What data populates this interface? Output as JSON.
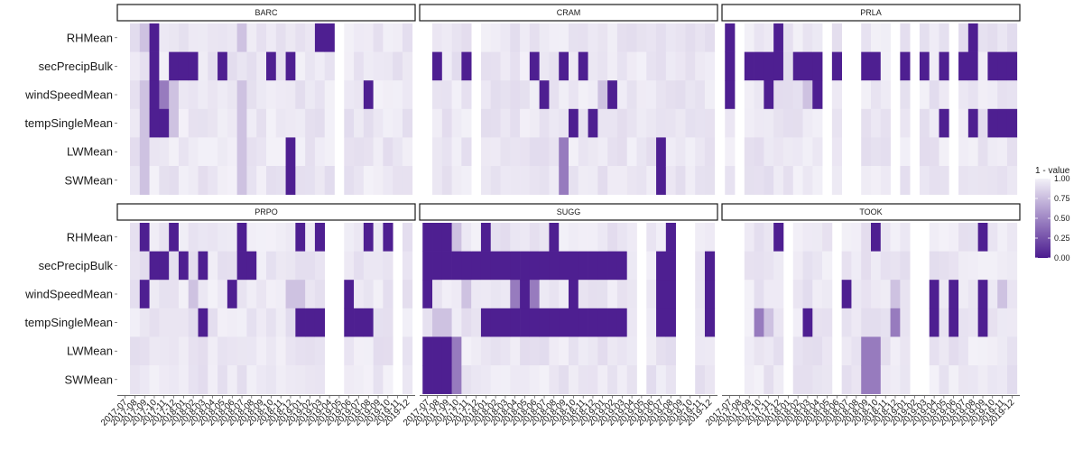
{
  "chart_data": {
    "type": "heatmap",
    "title": "",
    "xlabel": "",
    "ylabel": "",
    "variables": [
      "RHMean",
      "secPrecipBulk",
      "windSpeedMean",
      "tempSingleMean",
      "LWMean",
      "SWMean"
    ],
    "months": [
      "2017-07",
      "2017-08",
      "2017-09",
      "2017-10",
      "2017-11",
      "2017-12",
      "2018-01",
      "2018-02",
      "2018-03",
      "2018-04",
      "2018-05",
      "2018-06",
      "2018-07",
      "2018-08",
      "2018-09",
      "2018-10",
      "2018-11",
      "2018-12",
      "2019-01",
      "2019-02",
      "2019-03",
      "2019-04",
      "2019-05",
      "2019-06",
      "2019-07",
      "2019-08",
      "2019-09",
      "2019-10",
      "2019-11",
      "2019-12"
    ],
    "legend": {
      "title": "1 - value",
      "ticks": [
        "1.00",
        "0.75",
        "0.50",
        "0.25",
        "0.00"
      ],
      "low_color": "#4b1b8f",
      "high_color": "#f3f1f8",
      "placement": "right"
    },
    "panels": [
      {
        "site": "BARC",
        "missing_months": [
          "2017-07",
          "2019-05"
        ],
        "dark": {
          "RHMean": [
            "2017-10",
            "2019-03",
            "2019-04"
          ],
          "secPrecipBulk": [
            "2017-10",
            "2017-12",
            "2018-01",
            "2018-02",
            "2018-05",
            "2018-10",
            "2018-12"
          ],
          "windSpeedMean": [
            "2017-10",
            "2019-08"
          ],
          "tempSingleMean": [
            "2017-10",
            "2017-11"
          ],
          "LWMean": [
            "2018-12"
          ],
          "SWMean": [
            "2018-12"
          ]
        },
        "medium": {
          "windSpeedMean": [
            "2017-11"
          ]
        },
        "light": {
          "RHMean": [
            "2017-09",
            "2018-07"
          ],
          "windSpeedMean": [
            "2017-09",
            "2017-12",
            "2018-07"
          ],
          "tempSingleMean": [
            "2017-09",
            "2017-12",
            "2018-07"
          ],
          "LWMean": [
            "2017-09",
            "2018-07"
          ],
          "SWMean": [
            "2017-09",
            "2018-07"
          ]
        }
      },
      {
        "site": "CRAM",
        "missing_months": [
          "2017-07",
          "2017-12"
        ],
        "dark": {
          "secPrecipBulk": [
            "2017-08",
            "2017-11",
            "2018-06",
            "2018-09",
            "2018-11"
          ],
          "windSpeedMean": [
            "2018-07",
            "2019-02"
          ],
          "tempSingleMean": [
            "2018-10",
            "2018-12"
          ],
          "LWMean": [
            "2019-07"
          ],
          "SWMean": [
            "2019-07"
          ]
        },
        "medium": {
          "LWMean": [
            "2018-09"
          ],
          "SWMean": [
            "2018-09"
          ]
        },
        "light": {
          "windSpeedMean": [
            "2019-01"
          ]
        }
      },
      {
        "site": "PRLA",
        "missing_months": [
          "2017-08",
          "2018-05",
          "2018-07",
          "2018-08",
          "2018-12",
          "2019-02",
          "2019-06"
        ],
        "dark": {
          "RHMean": [
            "2017-07",
            "2017-12",
            "2019-08"
          ],
          "secPrecipBulk": [
            "2017-07",
            "2017-08",
            "2017-09",
            "2017-10",
            "2017-11",
            "2017-12",
            "2018-02",
            "2018-03",
            "2018-04",
            "2018-06",
            "2018-09",
            "2018-10",
            "2019-01",
            "2019-03",
            "2019-05",
            "2019-07",
            "2019-08",
            "2019-10",
            "2019-11",
            "2019-12"
          ],
          "windSpeedMean": [
            "2017-07",
            "2017-11",
            "2018-04"
          ],
          "tempSingleMean": [
            "2019-05",
            "2019-08",
            "2019-10",
            "2019-11",
            "2019-12"
          ]
        },
        "medium": {
          "LWMean": [
            "2017-08"
          ],
          "SWMean": [
            "2017-08"
          ]
        },
        "light": {
          "windSpeedMean": [
            "2018-03"
          ]
        }
      },
      {
        "site": "PRPO",
        "missing_months": [
          "2017-07",
          "2019-04",
          "2019-05",
          "2019-11"
        ],
        "dark": {
          "RHMean": [
            "2017-09",
            "2017-12",
            "2018-07",
            "2019-01",
            "2019-03",
            "2019-08",
            "2019-10"
          ],
          "secPrecipBulk": [
            "2017-10",
            "2017-11",
            "2018-01",
            "2018-03",
            "2018-07",
            "2018-08"
          ],
          "windSpeedMean": [
            "2017-09",
            "2018-06",
            "2019-06"
          ],
          "tempSingleMean": [
            "2018-03",
            "2019-01",
            "2019-02",
            "2019-03",
            "2019-06",
            "2019-07",
            "2019-08"
          ]
        },
        "medium": {},
        "light": {
          "windSpeedMean": [
            "2018-02",
            "2018-12",
            "2019-01"
          ]
        }
      },
      {
        "site": "SUGG",
        "missing_months": [
          "2019-05",
          "2019-09",
          "2019-10"
        ],
        "dark": {
          "RHMean": [
            "2017-07",
            "2017-08",
            "2017-09",
            "2018-01",
            "2018-08",
            "2019-08"
          ],
          "secPrecipBulk": [
            "2017-07",
            "2017-08",
            "2017-09",
            "2017-10",
            "2017-11",
            "2017-12",
            "2018-01",
            "2018-02",
            "2018-03",
            "2018-04",
            "2018-05",
            "2018-06",
            "2018-07",
            "2018-08",
            "2018-09",
            "2018-10",
            "2018-11",
            "2018-12",
            "2019-01",
            "2019-02",
            "2019-03",
            "2019-07",
            "2019-08",
            "2019-12"
          ],
          "windSpeedMean": [
            "2017-07",
            "2018-05",
            "2018-10",
            "2019-07",
            "2019-08",
            "2019-12"
          ],
          "tempSingleMean": [
            "2018-01",
            "2018-02",
            "2018-03",
            "2018-04",
            "2018-05",
            "2018-06",
            "2018-07",
            "2018-08",
            "2018-09",
            "2018-10",
            "2018-11",
            "2018-12",
            "2019-01",
            "2019-02",
            "2019-03",
            "2019-07",
            "2019-08",
            "2019-12"
          ],
          "LWMean": [
            "2017-07",
            "2017-08",
            "2017-09"
          ],
          "SWMean": [
            "2017-07",
            "2017-08",
            "2017-09"
          ]
        },
        "medium": {
          "windSpeedMean": [
            "2018-04",
            "2018-06"
          ],
          "LWMean": [
            "2017-10"
          ],
          "SWMean": [
            "2017-10"
          ]
        },
        "light": {
          "RHMean": [
            "2017-10"
          ],
          "tempSingleMean": [
            "2017-08",
            "2017-09"
          ],
          "windSpeedMean": [
            "2017-11"
          ]
        }
      },
      {
        "site": "TOOK",
        "missing_months": [
          "2017-07",
          "2017-08",
          "2018-01",
          "2018-06",
          "2019-02",
          "2019-03"
        ],
        "dark": {
          "RHMean": [
            "2017-12",
            "2018-10",
            "2019-09"
          ],
          "windSpeedMean": [
            "2018-07",
            "2019-04",
            "2019-06",
            "2019-09"
          ],
          "tempSingleMean": [
            "2018-03",
            "2019-04",
            "2019-06",
            "2019-09"
          ]
        },
        "medium": {
          "tempSingleMean": [
            "2017-10",
            "2018-12"
          ],
          "LWMean": [
            "2018-09",
            "2018-10"
          ],
          "SWMean": [
            "2018-09",
            "2018-10"
          ]
        },
        "light": {
          "tempSingleMean": [
            "2017-11"
          ],
          "windSpeedMean": [
            "2018-12",
            "2019-11"
          ]
        }
      }
    ]
  }
}
